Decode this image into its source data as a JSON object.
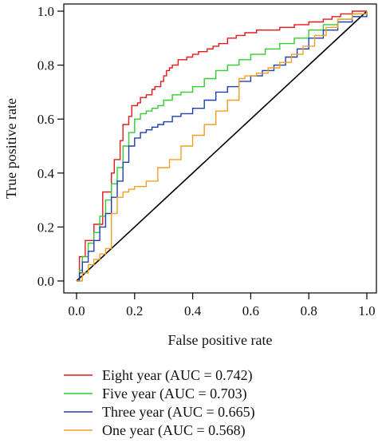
{
  "chart_data": {
    "type": "line",
    "xlabel": "False positive rate",
    "ylabel": "True positive rate",
    "xlim": [
      0,
      1
    ],
    "ylim": [
      0,
      1
    ],
    "xticks": [
      "0.0",
      "0.2",
      "0.4",
      "0.6",
      "0.8",
      "1.0"
    ],
    "yticks": [
      "0.0",
      "0.2",
      "0.4",
      "0.6",
      "0.8",
      "1.0"
    ],
    "grid": false,
    "legend_position": "bottom",
    "reference_line": {
      "x": [
        0,
        1
      ],
      "y": [
        0,
        1
      ],
      "color": "#000000"
    },
    "series": [
      {
        "name": "Eight year (AUC = 0.742)",
        "color": "#e31a1c",
        "x": [
          0,
          0.01,
          0.01,
          0.03,
          0.03,
          0.06,
          0.06,
          0.09,
          0.09,
          0.12,
          0.13,
          0.15,
          0.16,
          0.18,
          0.19,
          0.21,
          0.22,
          0.24,
          0.26,
          0.27,
          0.29,
          0.3,
          0.31,
          0.32,
          0.33,
          0.35,
          0.36,
          0.38,
          0.4,
          0.42,
          0.44,
          0.45,
          0.47,
          0.49,
          0.52,
          0.55,
          0.58,
          0.62,
          0.66,
          0.7,
          0.75,
          0.8,
          0.85,
          0.88,
          0.91,
          0.95,
          1.0
        ],
        "y": [
          0,
          0.05,
          0.09,
          0.11,
          0.15,
          0.17,
          0.21,
          0.27,
          0.33,
          0.4,
          0.45,
          0.52,
          0.58,
          0.61,
          0.65,
          0.66,
          0.68,
          0.69,
          0.71,
          0.72,
          0.74,
          0.76,
          0.78,
          0.79,
          0.8,
          0.82,
          0.82,
          0.83,
          0.84,
          0.85,
          0.85,
          0.86,
          0.87,
          0.88,
          0.9,
          0.91,
          0.92,
          0.93,
          0.93,
          0.94,
          0.95,
          0.96,
          0.97,
          0.98,
          0.99,
          1.0,
          1.0
        ]
      },
      {
        "name": "Five year (AUC = 0.703)",
        "color": "#33cc33",
        "x": [
          0,
          0.01,
          0.02,
          0.04,
          0.06,
          0.08,
          0.1,
          0.12,
          0.14,
          0.16,
          0.18,
          0.2,
          0.22,
          0.24,
          0.26,
          0.28,
          0.3,
          0.33,
          0.36,
          0.4,
          0.44,
          0.48,
          0.52,
          0.56,
          0.6,
          0.65,
          0.7,
          0.75,
          0.8,
          0.85,
          0.9,
          0.95,
          1.0
        ],
        "y": [
          0,
          0.04,
          0.09,
          0.14,
          0.18,
          0.24,
          0.3,
          0.36,
          0.42,
          0.5,
          0.55,
          0.6,
          0.62,
          0.63,
          0.64,
          0.65,
          0.67,
          0.69,
          0.7,
          0.72,
          0.75,
          0.78,
          0.8,
          0.82,
          0.84,
          0.86,
          0.88,
          0.9,
          0.93,
          0.95,
          0.97,
          0.99,
          1.0
        ]
      },
      {
        "name": "Three year (AUC = 0.665)",
        "color": "#1f3fb0",
        "x": [
          0,
          0.01,
          0.02,
          0.04,
          0.06,
          0.08,
          0.1,
          0.12,
          0.14,
          0.16,
          0.18,
          0.2,
          0.22,
          0.24,
          0.26,
          0.28,
          0.3,
          0.33,
          0.36,
          0.4,
          0.44,
          0.48,
          0.52,
          0.56,
          0.6,
          0.64,
          0.68,
          0.72,
          0.76,
          0.8,
          0.85,
          0.9,
          0.95,
          1.0
        ],
        "y": [
          0,
          0.03,
          0.07,
          0.11,
          0.15,
          0.2,
          0.25,
          0.31,
          0.37,
          0.44,
          0.5,
          0.53,
          0.55,
          0.56,
          0.57,
          0.58,
          0.59,
          0.61,
          0.62,
          0.64,
          0.67,
          0.7,
          0.72,
          0.74,
          0.76,
          0.78,
          0.8,
          0.83,
          0.86,
          0.9,
          0.93,
          0.96,
          0.98,
          1.0
        ]
      },
      {
        "name": "One year (AUC = 0.568)",
        "color": "#f0a020",
        "x": [
          0,
          0.02,
          0.04,
          0.06,
          0.08,
          0.1,
          0.12,
          0.14,
          0.16,
          0.18,
          0.2,
          0.24,
          0.28,
          0.32,
          0.36,
          0.4,
          0.44,
          0.48,
          0.52,
          0.56,
          0.58,
          0.62,
          0.66,
          0.7,
          0.74,
          0.78,
          0.82,
          0.86,
          0.9,
          0.95,
          1.0
        ],
        "y": [
          0,
          0.03,
          0.06,
          0.08,
          0.1,
          0.12,
          0.25,
          0.31,
          0.33,
          0.34,
          0.35,
          0.37,
          0.42,
          0.45,
          0.5,
          0.54,
          0.58,
          0.63,
          0.67,
          0.75,
          0.76,
          0.77,
          0.79,
          0.81,
          0.84,
          0.87,
          0.91,
          0.94,
          0.97,
          0.99,
          1.0
        ]
      }
    ]
  }
}
